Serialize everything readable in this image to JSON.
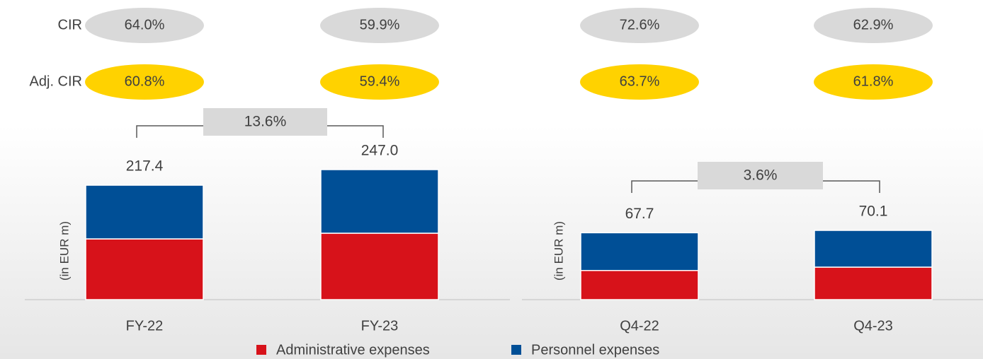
{
  "chart_data": [
    {
      "type": "stacked-bar",
      "categories": [
        "FY-22",
        "FY-23"
      ],
      "axis_label": "(in EUR m)",
      "series": [
        {
          "name": "Administrative expenses",
          "color": "#d7121a",
          "values": [
            115.4,
            126.2
          ]
        },
        {
          "name": "Personnel expenses",
          "color": "#004f96",
          "values": [
            102.0,
            120.8
          ]
        }
      ],
      "totals": {
        "values": [
          217.4,
          247.0
        ],
        "value_labels": [
          "217.4",
          "247.0"
        ]
      },
      "growth": {
        "value": 13.6,
        "label": "13.6%"
      },
      "ratio_rows": [
        {
          "name": "CIR",
          "color": "#d9d9d9",
          "values": [
            64.0,
            59.9
          ],
          "value_labels": [
            "64.0%",
            "59.9%"
          ]
        },
        {
          "name": "Adj. CIR",
          "color": "#ffd200",
          "values": [
            60.8,
            59.4
          ],
          "value_labels": [
            "60.8%",
            "59.4%"
          ]
        }
      ]
    },
    {
      "type": "stacked-bar",
      "categories": [
        "Q4-22",
        "Q4-23"
      ],
      "axis_label": "(in EUR m)",
      "series": [
        {
          "color": "#d7121a",
          "values": [
            29.5,
            32.9
          ]
        },
        {
          "color": "#004f96",
          "values": [
            38.2,
            37.2
          ]
        }
      ],
      "totals": {
        "values": [
          67.7,
          70.1
        ],
        "value_labels": [
          "67.7",
          "70.1"
        ]
      },
      "growth": {
        "value": 3.6,
        "label": "3.6%"
      },
      "ratio_rows": [
        {
          "color": "#d9d9d9",
          "values": [
            72.6,
            62.9
          ],
          "value_labels": [
            "72.6%",
            "62.9%"
          ]
        },
        {
          "color": "#ffd200",
          "values": [
            63.7,
            61.8
          ],
          "value_labels": [
            "63.7%",
            "61.8%"
          ]
        }
      ]
    }
  ]
}
